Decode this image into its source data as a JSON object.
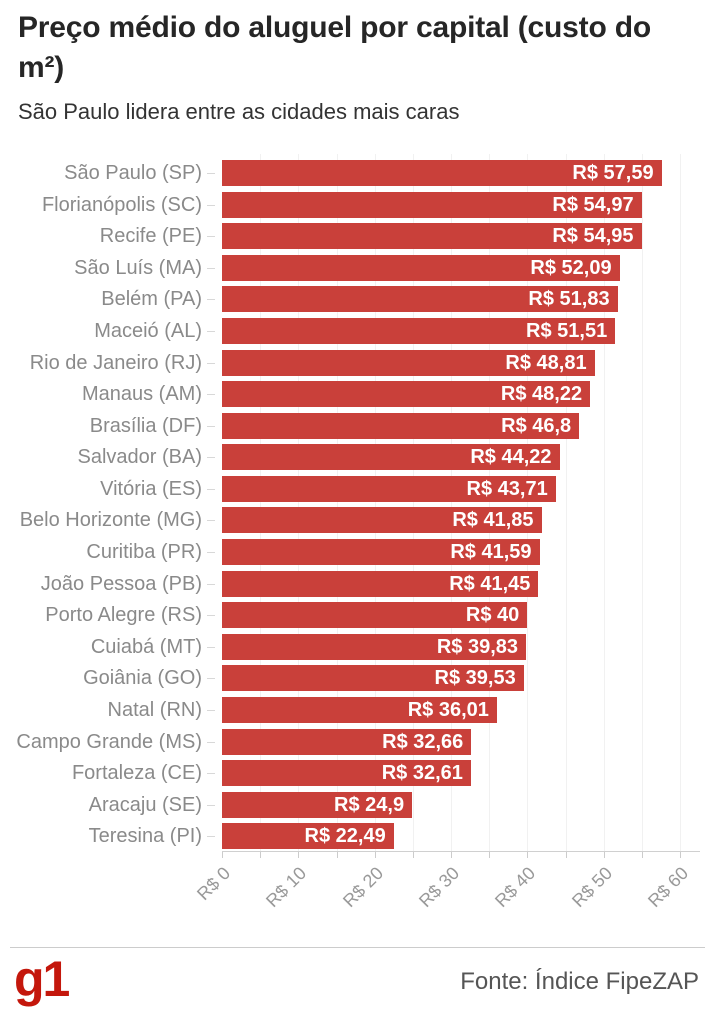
{
  "header": {
    "title": "Preço médio do aluguel por capital (custo do m²)",
    "subtitle": "São Paulo lidera entre as cidades mais caras"
  },
  "chart_data": {
    "type": "bar",
    "orientation": "horizontal",
    "title": "Preço médio do aluguel por capital (custo do m²)",
    "subtitle": "São Paulo lidera entre as cidades mais caras",
    "unit": "R$ por m²",
    "categories": [
      "São Paulo (SP)",
      "Florianópolis (SC)",
      "Recife (PE)",
      "São Luís (MA)",
      "Belém (PA)",
      "Maceió (AL)",
      "Rio de Janeiro (RJ)",
      "Manaus (AM)",
      "Brasília (DF)",
      "Salvador (BA)",
      "Vitória (ES)",
      "Belo Horizonte (MG)",
      "Curitiba (PR)",
      "João Pessoa (PB)",
      "Porto Alegre (RS)",
      "Cuiabá (MT)",
      "Goiânia (GO)",
      "Natal (RN)",
      "Campo Grande (MS)",
      "Fortaleza (CE)",
      "Aracaju (SE)",
      "Teresina (PI)"
    ],
    "values": [
      57.59,
      54.97,
      54.95,
      52.09,
      51.83,
      51.51,
      48.81,
      48.22,
      46.8,
      44.22,
      43.71,
      41.85,
      41.59,
      41.45,
      40,
      39.83,
      39.53,
      36.01,
      32.66,
      32.61,
      24.9,
      22.49
    ],
    "value_labels": [
      "R$ 57,59",
      "R$ 54,97",
      "R$ 54,95",
      "R$ 52,09",
      "R$ 51,83",
      "R$ 51,51",
      "R$ 48,81",
      "R$ 48,22",
      "R$ 46,8",
      "R$ 44,22",
      "R$ 43,71",
      "R$ 41,85",
      "R$ 41,59",
      "R$ 41,45",
      "R$ 40",
      "R$ 39,83",
      "R$ 39,53",
      "R$ 36,01",
      "R$ 32,66",
      "R$ 32,61",
      "R$ 24,9",
      "R$ 22,49"
    ],
    "xlim": [
      0,
      60
    ],
    "x_tick_values": [
      0,
      10,
      20,
      30,
      40,
      50,
      60
    ],
    "x_tick_labels": [
      "R$ 0",
      "R$ 10",
      "R$ 20",
      "R$ 30",
      "R$ 40",
      "R$ 50",
      "R$ 60"
    ],
    "grid_step": 5,
    "grid": "on",
    "legend": "none",
    "bar_color": "#c9403a",
    "value_label_color": "#ffffff",
    "category_label_color": "#8a8a8a"
  },
  "footer": {
    "logo": "g1",
    "logo_color": "#c4170c",
    "source": "Fonte: Índice FipeZAP"
  }
}
